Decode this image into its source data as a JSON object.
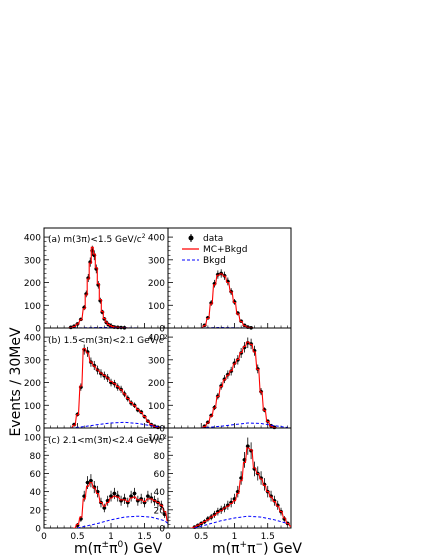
{
  "ylabel": "Events / 30MeV",
  "xlabels": {
    "left": {
      "pre": "m(π",
      "sup": "±",
      "mid": "π",
      "sup2": "0",
      "post": ") GeV"
    },
    "right": {
      "pre": "m(π",
      "sup": "+",
      "mid": "π",
      "sup2": "−",
      "post": ") GeV"
    }
  },
  "legend": {
    "data": "data",
    "mc": "MC+Bkgd",
    "bkg": "Bkgd"
  },
  "panel_labels": {
    "a": {
      "text": "(a) m(3π)<1.5 GeV/c",
      "sup": "2"
    },
    "b": {
      "text": "(b) 1.5<m(3π)<2.1 GeV/c",
      "sup": "2"
    },
    "c": {
      "text": "(c) 2.1<m(3π)<2.4 GeV/c",
      "sup": "2"
    }
  },
  "colors": {
    "mc": "#ff0000",
    "bkg": "#0000ff",
    "data": "#000000"
  },
  "chart_data": [
    {
      "type": "line",
      "id": "a-left",
      "panel": "(a)",
      "xaxis": "m(π±π0) GeV",
      "xlim": [
        0,
        1.85
      ],
      "ylim": [
        0,
        440
      ],
      "xticks": [
        "0",
        "0.5",
        "1",
        "1.5"
      ],
      "xtick_values": [
        0,
        0.5,
        1,
        1.5
      ],
      "yticks": [
        "0",
        "100",
        "200",
        "300",
        "400"
      ],
      "ytick_values": [
        0,
        100,
        200,
        300,
        400
      ],
      "series": [
        {
          "role": "data",
          "x": [
            0.4,
            0.45,
            0.5,
            0.55,
            0.6,
            0.63,
            0.66,
            0.69,
            0.72,
            0.75,
            0.78,
            0.81,
            0.84,
            0.87,
            0.9,
            0.93,
            0.96,
            0.99,
            1.02,
            1.05,
            1.1,
            1.15,
            1.2
          ],
          "y": [
            3,
            8,
            18,
            38,
            90,
            150,
            220,
            290,
            340,
            320,
            260,
            190,
            120,
            70,
            40,
            25,
            15,
            10,
            6,
            4,
            3,
            2,
            1
          ]
        },
        {
          "role": "mc",
          "x": [
            0.35,
            0.4,
            0.45,
            0.5,
            0.55,
            0.6,
            0.63,
            0.66,
            0.69,
            0.72,
            0.75,
            0.78,
            0.81,
            0.84,
            0.87,
            0.9,
            0.93,
            0.96,
            0.99,
            1.02,
            1.05,
            1.1,
            1.15,
            1.2,
            1.3
          ],
          "y": [
            0,
            2,
            7,
            17,
            36,
            85,
            145,
            215,
            285,
            355,
            325,
            265,
            195,
            125,
            72,
            42,
            26,
            16,
            10,
            6,
            4,
            3,
            2,
            1,
            0
          ]
        },
        {
          "role": "bkg",
          "x": [
            0.3,
            0.6,
            0.9,
            1.2,
            1.5
          ],
          "y": [
            0,
            1,
            2,
            1,
            0
          ]
        }
      ]
    },
    {
      "type": "line",
      "id": "a-right",
      "panel": "(a)",
      "xaxis": "m(π+π−) GeV",
      "xlim": [
        0,
        1.85
      ],
      "ylim": [
        0,
        440
      ],
      "xticks": [
        "0",
        "0.5",
        "1",
        "1.5"
      ],
      "xtick_values": [
        0,
        0.5,
        1,
        1.5
      ],
      "yticks": [
        "0",
        "100",
        "200",
        "300",
        "400"
      ],
      "ytick_values": [
        0,
        100,
        200,
        300,
        400
      ],
      "series": [
        {
          "role": "data",
          "x": [
            0.55,
            0.6,
            0.65,
            0.7,
            0.75,
            0.8,
            0.85,
            0.9,
            0.95,
            1.0,
            1.05,
            1.1,
            1.15,
            1.2,
            1.25
          ],
          "y": [
            12,
            45,
            110,
            195,
            235,
            240,
            230,
            205,
            160,
            115,
            65,
            30,
            12,
            4,
            1
          ]
        },
        {
          "role": "mc",
          "x": [
            0.5,
            0.55,
            0.6,
            0.65,
            0.7,
            0.75,
            0.8,
            0.85,
            0.9,
            0.95,
            1.0,
            1.05,
            1.1,
            1.15,
            1.2,
            1.25,
            1.3
          ],
          "y": [
            0,
            10,
            42,
            105,
            190,
            232,
            238,
            228,
            200,
            158,
            112,
            62,
            28,
            10,
            3,
            1,
            0
          ]
        },
        {
          "role": "bkg",
          "x": [
            0.5,
            0.8,
            1.0,
            1.3
          ],
          "y": [
            0,
            2,
            1,
            0
          ]
        }
      ]
    },
    {
      "type": "line",
      "id": "b-left",
      "panel": "(b)",
      "xaxis": "m(π±π0) GeV",
      "xlim": [
        0,
        1.85
      ],
      "ylim": [
        0,
        440
      ],
      "xticks": [
        "0",
        "0.5",
        "1",
        "1.5"
      ],
      "xtick_values": [
        0,
        0.5,
        1,
        1.5
      ],
      "yticks": [
        "0",
        "100",
        "200",
        "300",
        "400"
      ],
      "ytick_values": [
        0,
        100,
        200,
        300,
        400
      ],
      "series": [
        {
          "role": "data",
          "x": [
            0.45,
            0.5,
            0.55,
            0.6,
            0.65,
            0.7,
            0.75,
            0.8,
            0.85,
            0.9,
            0.95,
            1.0,
            1.05,
            1.1,
            1.15,
            1.2,
            1.25,
            1.3,
            1.35,
            1.4,
            1.45,
            1.5,
            1.55,
            1.6,
            1.65,
            1.7
          ],
          "y": [
            15,
            60,
            180,
            345,
            335,
            290,
            275,
            255,
            240,
            230,
            220,
            200,
            195,
            180,
            170,
            150,
            130,
            110,
            100,
            80,
            70,
            50,
            30,
            15,
            8,
            3
          ]
        },
        {
          "role": "mc",
          "x": [
            0.4,
            0.45,
            0.5,
            0.55,
            0.6,
            0.65,
            0.7,
            0.75,
            0.8,
            0.85,
            0.9,
            0.95,
            1.0,
            1.05,
            1.1,
            1.15,
            1.2,
            1.25,
            1.3,
            1.35,
            1.4,
            1.45,
            1.5,
            1.55,
            1.6,
            1.65,
            1.7,
            1.75
          ],
          "y": [
            0,
            12,
            58,
            185,
            350,
            330,
            290,
            272,
            255,
            242,
            232,
            220,
            205,
            195,
            182,
            168,
            150,
            130,
            112,
            98,
            82,
            68,
            50,
            30,
            15,
            7,
            2,
            0
          ]
        },
        {
          "role": "bkg",
          "x": [
            0.4,
            0.6,
            0.8,
            1.0,
            1.2,
            1.4,
            1.6,
            1.75
          ],
          "y": [
            0,
            6,
            15,
            22,
            25,
            20,
            10,
            3
          ]
        }
      ]
    },
    {
      "type": "line",
      "id": "b-right",
      "panel": "(b)",
      "xaxis": "m(π+π−) GeV",
      "xlim": [
        0,
        1.85
      ],
      "ylim": [
        0,
        440
      ],
      "xticks": [
        "0",
        "0.5",
        "1",
        "1.5"
      ],
      "xtick_values": [
        0,
        0.5,
        1,
        1.5
      ],
      "yticks": [
        "0",
        "100",
        "200",
        "300",
        "400"
      ],
      "ytick_values": [
        0,
        100,
        200,
        300,
        400
      ],
      "series": [
        {
          "role": "data",
          "x": [
            0.55,
            0.6,
            0.65,
            0.7,
            0.75,
            0.8,
            0.85,
            0.9,
            0.95,
            1.0,
            1.05,
            1.1,
            1.15,
            1.2,
            1.25,
            1.3,
            1.35,
            1.4,
            1.45,
            1.5,
            1.55,
            1.6
          ],
          "y": [
            8,
            25,
            55,
            90,
            140,
            185,
            215,
            235,
            250,
            285,
            300,
            330,
            355,
            375,
            370,
            340,
            260,
            160,
            80,
            30,
            10,
            3
          ]
        },
        {
          "role": "mc",
          "x": [
            0.5,
            0.55,
            0.6,
            0.65,
            0.7,
            0.75,
            0.8,
            0.85,
            0.9,
            0.95,
            1.0,
            1.05,
            1.1,
            1.15,
            1.2,
            1.25,
            1.3,
            1.35,
            1.4,
            1.45,
            1.5,
            1.55,
            1.6,
            1.65
          ],
          "y": [
            0,
            6,
            22,
            52,
            88,
            138,
            182,
            212,
            232,
            252,
            282,
            302,
            332,
            358,
            378,
            368,
            335,
            258,
            158,
            78,
            28,
            8,
            2,
            0
          ]
        },
        {
          "role": "bkg",
          "x": [
            0.5,
            0.8,
            1.0,
            1.2,
            1.4,
            1.6,
            1.8
          ],
          "y": [
            0,
            8,
            15,
            22,
            20,
            10,
            2
          ]
        }
      ]
    },
    {
      "type": "line",
      "id": "c-left",
      "panel": "(c)",
      "xaxis": "m(π±π0) GeV",
      "xlim": [
        0,
        1.85
      ],
      "ylim": [
        0,
        110
      ],
      "xticks": [
        "0",
        "0.5",
        "1",
        "1.5"
      ],
      "xtick_values": [
        0,
        0.5,
        1,
        1.5
      ],
      "yticks": [
        "0",
        "20",
        "40",
        "60",
        "80",
        "100"
      ],
      "ytick_values": [
        0,
        20,
        40,
        60,
        80,
        100
      ],
      "series": [
        {
          "role": "data",
          "x": [
            0.5,
            0.55,
            0.6,
            0.65,
            0.7,
            0.75,
            0.8,
            0.85,
            0.9,
            0.95,
            1.0,
            1.05,
            1.1,
            1.15,
            1.2,
            1.25,
            1.3,
            1.35,
            1.4,
            1.45,
            1.5,
            1.55,
            1.6,
            1.65,
            1.7,
            1.75,
            1.8
          ],
          "y": [
            3,
            10,
            35,
            50,
            52,
            45,
            40,
            28,
            22,
            30,
            35,
            38,
            35,
            30,
            32,
            28,
            35,
            38,
            30,
            32,
            28,
            35,
            33,
            30,
            28,
            25,
            15
          ]
        },
        {
          "role": "mc",
          "x": [
            0.45,
            0.5,
            0.55,
            0.6,
            0.65,
            0.7,
            0.75,
            0.8,
            0.85,
            0.9,
            0.95,
            1.0,
            1.05,
            1.1,
            1.15,
            1.2,
            1.25,
            1.3,
            1.35,
            1.4,
            1.45,
            1.5,
            1.55,
            1.6,
            1.65,
            1.7,
            1.75,
            1.8,
            1.85
          ],
          "y": [
            0,
            4,
            12,
            32,
            46,
            50,
            44,
            38,
            28,
            24,
            28,
            33,
            35,
            34,
            31,
            31,
            29,
            33,
            34,
            31,
            31,
            29,
            32,
            32,
            30,
            28,
            25,
            18,
            8
          ]
        },
        {
          "role": "bkg",
          "x": [
            0.5,
            0.8,
            1.0,
            1.2,
            1.4,
            1.6,
            1.8,
            1.85
          ],
          "y": [
            0,
            5,
            9,
            12,
            13,
            12,
            8,
            5
          ]
        }
      ]
    },
    {
      "type": "line",
      "id": "c-right",
      "panel": "(c)",
      "xaxis": "m(π+π−) GeV",
      "xlim": [
        0,
        1.85
      ],
      "ylim": [
        0,
        110
      ],
      "xticks": [
        "0",
        "0.5",
        "1",
        "1.5"
      ],
      "xtick_values": [
        0,
        0.5,
        1,
        1.5
      ],
      "yticks": [
        "0",
        "20",
        "40",
        "60",
        "80",
        "100"
      ],
      "ytick_values": [
        0,
        20,
        40,
        60,
        80,
        100
      ],
      "series": [
        {
          "role": "data",
          "x": [
            0.4,
            0.45,
            0.5,
            0.55,
            0.6,
            0.65,
            0.7,
            0.75,
            0.8,
            0.85,
            0.9,
            0.95,
            1.0,
            1.05,
            1.1,
            1.15,
            1.2,
            1.25,
            1.3,
            1.35,
            1.4,
            1.45,
            1.5,
            1.55,
            1.6,
            1.65,
            1.7,
            1.75,
            1.8
          ],
          "y": [
            1,
            3,
            5,
            7,
            10,
            12,
            15,
            18,
            20,
            22,
            25,
            28,
            32,
            40,
            55,
            75,
            90,
            85,
            65,
            60,
            55,
            48,
            40,
            35,
            30,
            25,
            18,
            10,
            5
          ]
        },
        {
          "role": "mc",
          "x": [
            0.35,
            0.4,
            0.45,
            0.5,
            0.55,
            0.6,
            0.65,
            0.7,
            0.75,
            0.8,
            0.85,
            0.9,
            0.95,
            1.0,
            1.05,
            1.1,
            1.15,
            1.2,
            1.25,
            1.3,
            1.35,
            1.4,
            1.45,
            1.5,
            1.55,
            1.6,
            1.65,
            1.7,
            1.75,
            1.8,
            1.85
          ],
          "y": [
            0,
            1,
            3,
            5,
            7,
            9,
            12,
            14,
            17,
            19,
            22,
            24,
            27,
            30,
            38,
            52,
            72,
            88,
            86,
            66,
            60,
            54,
            47,
            40,
            34,
            29,
            24,
            18,
            11,
            5,
            2
          ]
        },
        {
          "role": "bkg",
          "x": [
            0.4,
            0.6,
            0.8,
            1.0,
            1.2,
            1.4,
            1.6,
            1.8
          ],
          "y": [
            0,
            4,
            8,
            11,
            13,
            12,
            9,
            5
          ]
        }
      ]
    }
  ]
}
